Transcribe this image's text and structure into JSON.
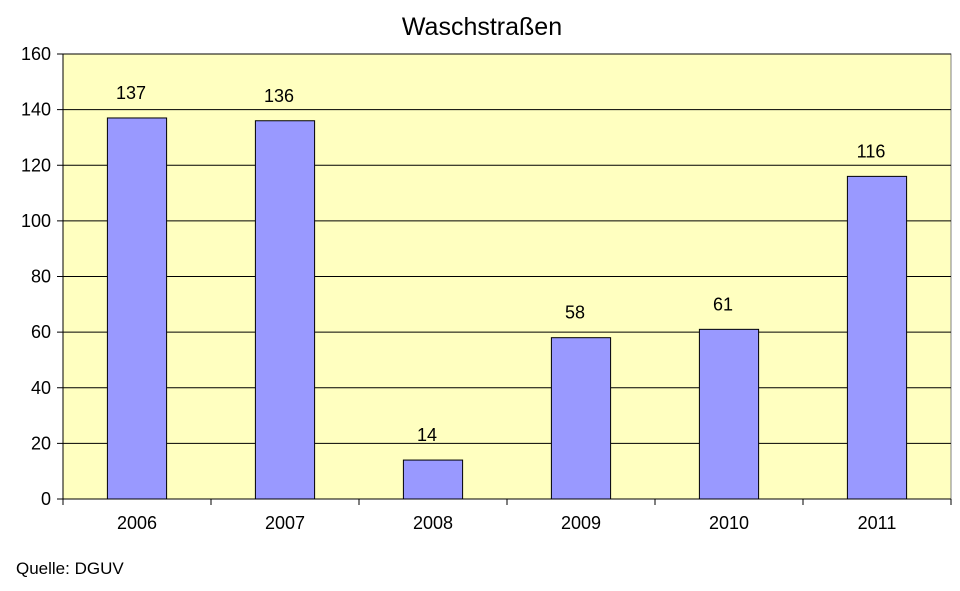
{
  "chart_data": {
    "type": "bar",
    "title": "Waschstraßen",
    "categories": [
      "2006",
      "2007",
      "2008",
      "2009",
      "2010",
      "2011"
    ],
    "values": [
      137,
      136,
      14,
      58,
      61,
      116
    ],
    "ylim": [
      0,
      160
    ],
    "yticks": [
      "0",
      "20",
      "40",
      "60",
      "80",
      "100",
      "120",
      "140",
      "160"
    ],
    "grid": true,
    "legend": "none",
    "colors": {
      "plot_background": "#FFFFC0",
      "bar_fill": "#9999FF",
      "bar_stroke": "#000000",
      "grid": "#000000"
    }
  },
  "source": "Quelle: DGUV"
}
